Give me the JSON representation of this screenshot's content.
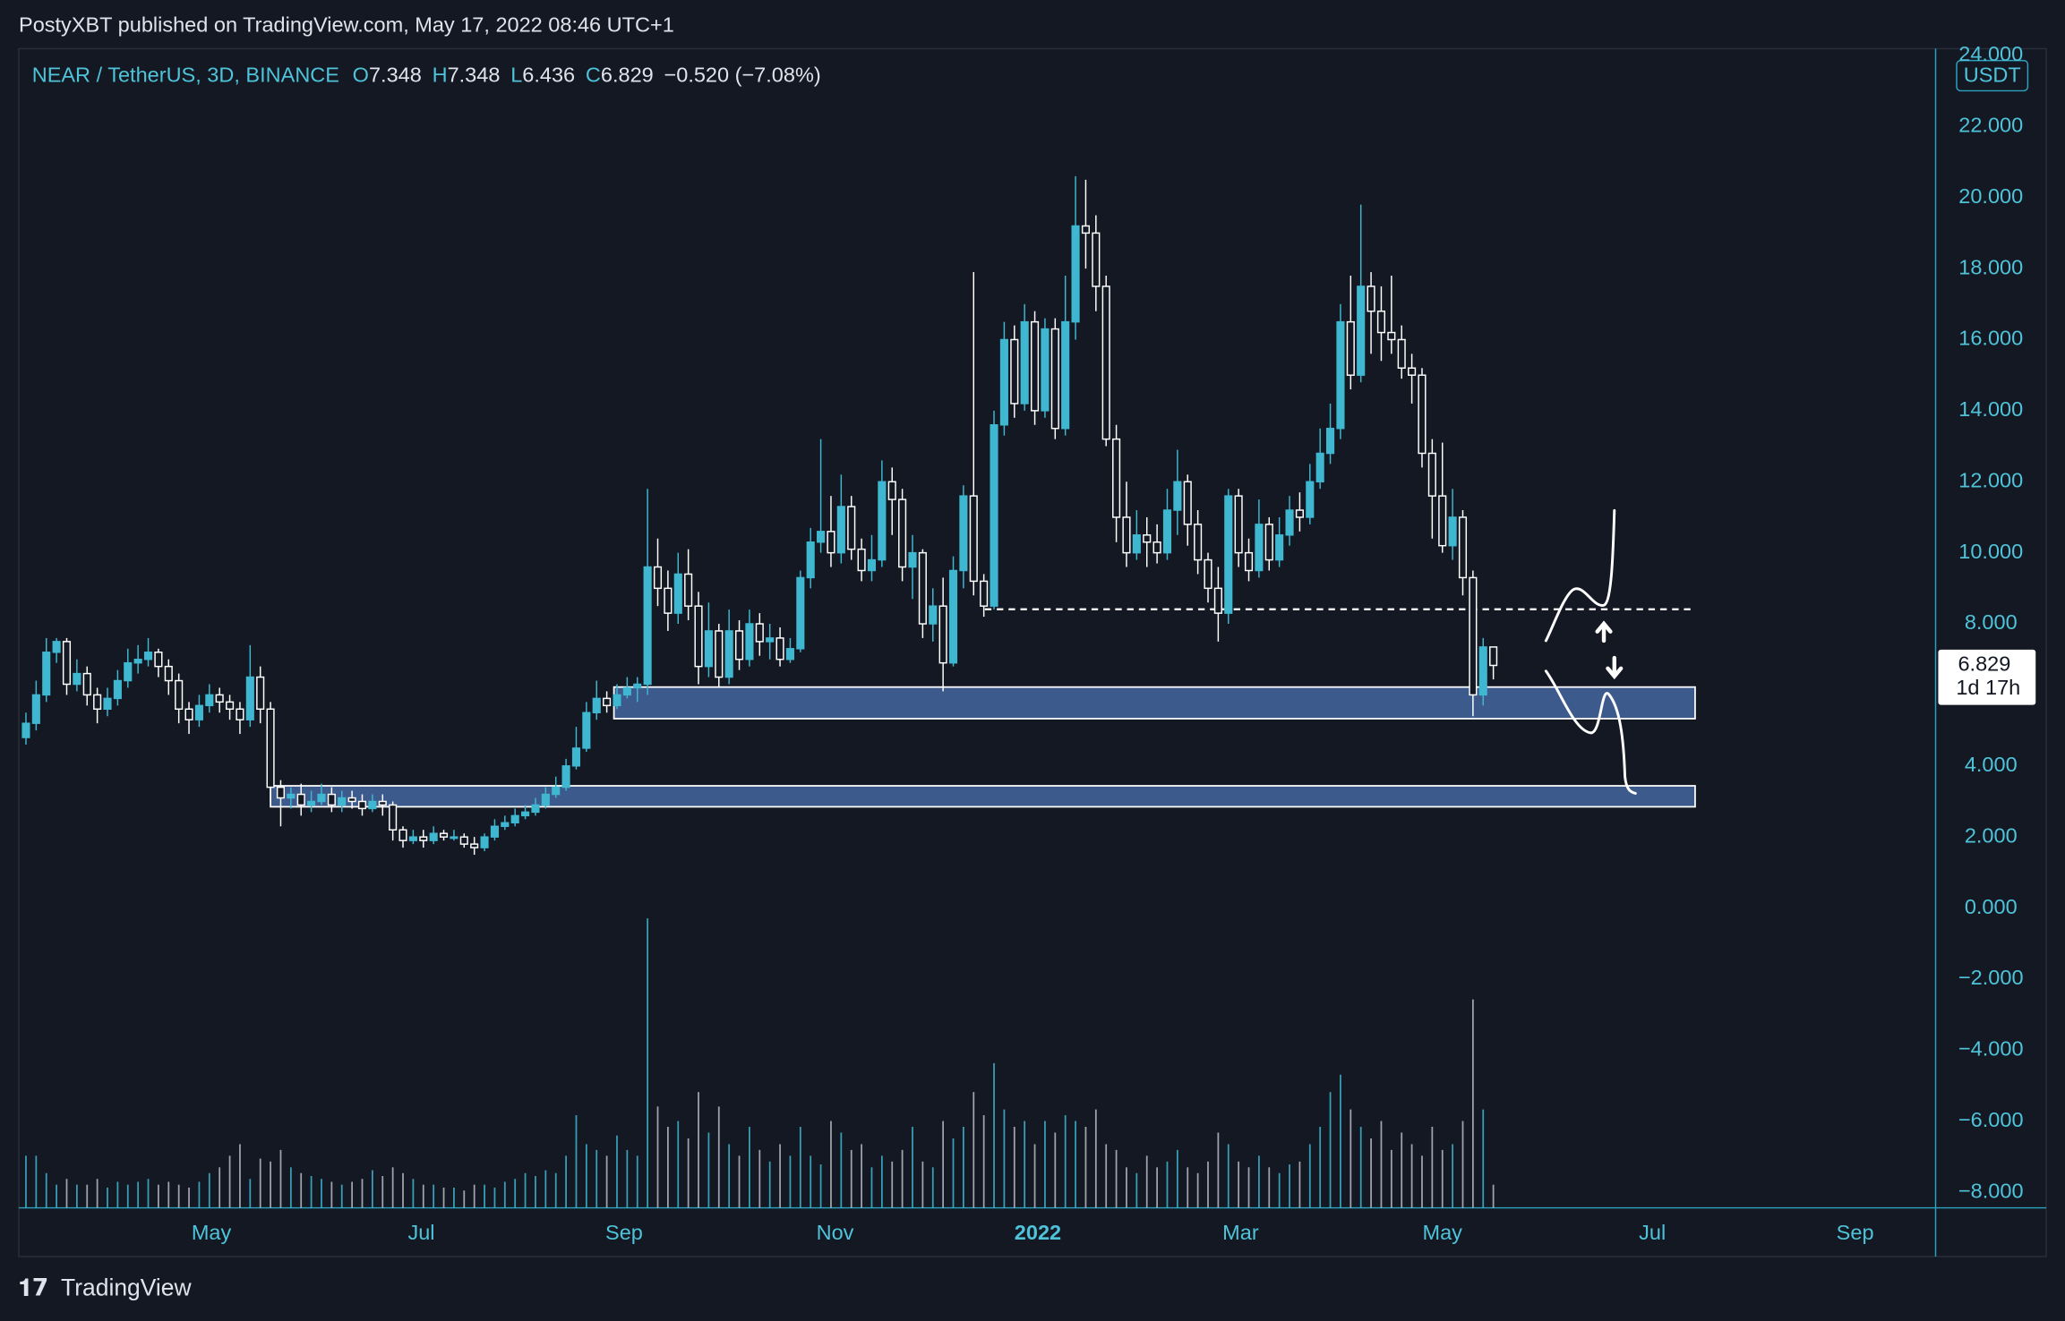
{
  "header": {
    "published": "PostyXBT published on TradingView.com, May 17, 2022 08:46 UTC+1"
  },
  "footer": {
    "logo": "TradingView"
  },
  "chart_data": {
    "type": "candlestick",
    "title": "NEAR / TetherUS, 3D, BINANCE",
    "ohlc_labels": [
      "O",
      "H",
      "L",
      "C"
    ],
    "change_label": "−0.520 (−7.08%)",
    "countdown": "1d 17h",
    "currency": "USDT",
    "up_color": "#3fb7d1",
    "down_color": "#ffffff",
    "zone_color": "#3d5a8c",
    "open": [
      4.8,
      5.2,
      6.0,
      7.2,
      7.5,
      6.3,
      6.6,
      6.0,
      5.6,
      5.9,
      6.4,
      6.9,
      7.0,
      7.2,
      6.8,
      6.4,
      5.6,
      5.3,
      5.7,
      6.0,
      5.8,
      5.6,
      5.3,
      6.5,
      5.6,
      3.4,
      3.1,
      3.2,
      2.9,
      3.0,
      3.2,
      2.9,
      3.1,
      3.0,
      2.8,
      3.0,
      2.9,
      2.2,
      1.9,
      2.0,
      1.9,
      2.1,
      2.0,
      2.0,
      1.8,
      1.7,
      2.0,
      2.3,
      2.4,
      2.6,
      2.7,
      2.9,
      3.2,
      3.4,
      4.0,
      4.5,
      5.5,
      5.9,
      5.7,
      6.0,
      6.2,
      6.3,
      9.6,
      9.0,
      8.3,
      9.4,
      8.5,
      6.8,
      7.8,
      6.5,
      7.8,
      7.0,
      8.0,
      7.5,
      7.6,
      7.0,
      7.3,
      9.3,
      10.3,
      10.6,
      10.0,
      11.3,
      10.1,
      9.5,
      9.8,
      12.0,
      11.5,
      9.6,
      10.0,
      8.0,
      8.5,
      6.9,
      9.5,
      11.6,
      9.2,
      8.5,
      13.6,
      16.0,
      14.2,
      16.5,
      14.0,
      16.3,
      13.5,
      16.5,
      19.2,
      19.0,
      17.5,
      13.2,
      11.0,
      10.0,
      10.5,
      10.3,
      10.0,
      11.2,
      12.0,
      10.8,
      9.8,
      9.0,
      8.3,
      11.6,
      10.0,
      9.5,
      10.8,
      9.8,
      10.5,
      11.2,
      11.0,
      12.0,
      12.8,
      13.5,
      16.5,
      15.0,
      17.5,
      16.8,
      16.2,
      16.0,
      15.2,
      15.0,
      12.8,
      11.6,
      10.2,
      11.0,
      9.3,
      6.0,
      7.348
    ],
    "high": [
      5.5,
      6.4,
      7.6,
      7.6,
      7.6,
      7.0,
      6.8,
      6.2,
      6.2,
      6.7,
      7.3,
      7.4,
      7.6,
      7.3,
      7.0,
      6.6,
      5.8,
      6.0,
      6.3,
      6.2,
      6.0,
      5.8,
      7.4,
      6.8,
      5.8,
      3.6,
      3.4,
      3.5,
      3.3,
      3.5,
      3.4,
      3.3,
      3.3,
      3.2,
      3.2,
      3.2,
      3.0,
      2.3,
      2.2,
      2.2,
      2.3,
      2.2,
      2.2,
      2.1,
      2.0,
      2.1,
      2.5,
      2.6,
      2.8,
      2.9,
      3.1,
      3.4,
      3.7,
      4.2,
      5.1,
      5.8,
      6.4,
      6.1,
      6.3,
      6.5,
      6.5,
      11.8,
      10.4,
      9.5,
      10.0,
      10.1,
      8.9,
      8.6,
      8.0,
      8.4,
      8.1,
      8.4,
      8.3,
      8.0,
      7.9,
      7.6,
      9.5,
      10.7,
      13.2,
      11.6,
      12.2,
      11.6,
      10.4,
      10.5,
      12.6,
      12.4,
      11.8,
      10.5,
      10.1,
      9.0,
      9.3,
      9.9,
      11.9,
      17.9,
      9.4,
      14.0,
      16.5,
      16.4,
      17.0,
      16.8,
      16.6,
      16.6,
      17.8,
      20.6,
      20.5,
      19.5,
      17.8,
      13.6,
      12.0,
      11.2,
      11.0,
      10.8,
      11.8,
      12.9,
      12.2,
      11.2,
      10.0,
      9.6,
      11.8,
      11.8,
      10.4,
      11.5,
      11.0,
      11.0,
      11.6,
      11.7,
      12.5,
      13.5,
      14.2,
      17.0,
      17.8,
      19.8,
      17.9,
      17.5,
      17.8,
      16.4,
      15.6,
      15.2,
      13.2,
      13.1,
      11.8,
      11.2,
      9.5,
      7.6,
      7.348
    ],
    "low": [
      4.6,
      5.0,
      5.8,
      6.9,
      6.0,
      6.1,
      5.7,
      5.2,
      5.4,
      5.7,
      6.2,
      6.6,
      6.8,
      6.5,
      6.0,
      5.2,
      4.9,
      5.1,
      5.5,
      5.5,
      5.3,
      4.9,
      5.1,
      5.2,
      3.0,
      2.3,
      2.8,
      2.6,
      2.7,
      2.9,
      2.7,
      2.7,
      2.8,
      2.6,
      2.7,
      2.6,
      1.9,
      1.7,
      1.8,
      1.7,
      1.8,
      1.9,
      1.9,
      1.7,
      1.5,
      1.6,
      1.9,
      2.2,
      2.3,
      2.5,
      2.6,
      2.8,
      3.1,
      3.3,
      3.9,
      4.4,
      5.3,
      5.5,
      5.6,
      5.9,
      5.8,
      6.0,
      8.5,
      7.8,
      8.0,
      8.1,
      6.3,
      6.5,
      6.2,
      6.3,
      6.7,
      6.8,
      7.1,
      7.0,
      6.8,
      6.9,
      7.2,
      9.0,
      10.0,
      9.6,
      9.7,
      9.8,
      9.2,
      9.2,
      9.6,
      10.5,
      9.2,
      8.7,
      7.6,
      7.5,
      6.1,
      6.8,
      9.0,
      8.8,
      8.2,
      8.4,
      13.3,
      13.8,
      14.0,
      13.6,
      13.8,
      13.2,
      13.3,
      16.0,
      18.0,
      16.8,
      13.0,
      10.3,
      9.6,
      9.8,
      9.6,
      9.7,
      9.8,
      10.5,
      10.2,
      9.4,
      8.6,
      7.5,
      8.0,
      9.6,
      9.2,
      9.3,
      9.5,
      9.6,
      10.2,
      10.6,
      10.8,
      11.8,
      12.5,
      13.2,
      14.6,
      14.8,
      15.6,
      15.4,
      15.6,
      14.9,
      14.2,
      12.4,
      10.4,
      10.0,
      9.8,
      8.8,
      5.4,
      5.7,
      6.436
    ],
    "close": [
      5.2,
      6.0,
      7.2,
      7.5,
      6.3,
      6.6,
      6.0,
      5.6,
      5.9,
      6.4,
      6.9,
      7.0,
      7.2,
      6.8,
      6.4,
      5.6,
      5.3,
      5.7,
      6.0,
      5.8,
      5.6,
      5.3,
      6.5,
      5.6,
      3.4,
      3.1,
      3.2,
      2.9,
      3.0,
      3.2,
      2.9,
      3.1,
      3.0,
      2.8,
      3.0,
      2.9,
      2.2,
      1.9,
      2.0,
      1.9,
      2.1,
      2.0,
      2.0,
      1.8,
      1.7,
      2.0,
      2.3,
      2.4,
      2.6,
      2.7,
      2.9,
      3.2,
      3.4,
      4.0,
      4.5,
      5.5,
      5.9,
      5.7,
      6.0,
      6.2,
      6.3,
      9.6,
      9.0,
      8.3,
      9.4,
      8.5,
      6.8,
      7.8,
      6.5,
      7.8,
      7.0,
      8.0,
      7.5,
      7.6,
      7.0,
      7.3,
      9.3,
      10.3,
      10.6,
      10.0,
      11.3,
      10.1,
      9.5,
      9.8,
      12.0,
      11.5,
      9.6,
      10.0,
      8.0,
      8.5,
      6.9,
      9.5,
      11.6,
      9.2,
      8.5,
      13.6,
      16.0,
      14.2,
      16.5,
      14.0,
      16.3,
      13.5,
      16.5,
      19.2,
      19.0,
      17.5,
      13.2,
      11.0,
      10.0,
      10.5,
      10.3,
      10.0,
      11.2,
      12.0,
      10.8,
      9.8,
      9.0,
      8.3,
      11.6,
      10.0,
      9.5,
      10.8,
      9.8,
      10.5,
      11.2,
      11.0,
      12.0,
      12.8,
      13.5,
      16.5,
      15.0,
      17.5,
      16.8,
      16.2,
      16.0,
      15.2,
      15.0,
      12.8,
      11.6,
      10.2,
      11.0,
      9.3,
      6.0,
      7.348,
      6.829
    ],
    "volume": [
      18,
      18,
      12,
      8,
      10,
      8,
      8,
      10,
      7,
      9,
      8,
      9,
      10,
      8,
      9,
      8,
      7,
      9,
      12,
      14,
      18,
      22,
      10,
      17,
      16,
      20,
      14,
      12,
      11,
      10,
      9,
      8,
      9,
      10,
      13,
      11,
      14,
      12,
      10,
      8,
      8,
      7,
      7,
      6,
      8,
      8,
      7,
      9,
      10,
      12,
      11,
      13,
      12,
      18,
      32,
      22,
      20,
      18,
      25,
      20,
      18,
      100,
      35,
      28,
      30,
      24,
      40,
      26,
      35,
      22,
      18,
      28,
      20,
      16,
      22,
      18,
      28,
      18,
      15,
      30,
      26,
      20,
      22,
      14,
      18,
      16,
      20,
      28,
      16,
      14,
      30,
      24,
      28,
      40,
      32,
      50,
      34,
      28,
      30,
      22,
      30,
      26,
      32,
      30,
      28,
      34,
      22,
      20,
      14,
      12,
      18,
      14,
      16,
      20,
      14,
      12,
      16,
      26,
      22,
      16,
      14,
      18,
      14,
      12,
      15,
      16,
      22,
      28,
      40,
      46,
      34,
      28,
      24,
      30,
      20,
      26,
      22,
      18,
      28,
      20,
      22,
      30,
      72,
      34,
      8
    ],
    "volume_lim": [
      0,
      100
    ],
    "zones": [
      {
        "top": 6.22,
        "bottom": 5.33,
        "from": 57.7,
        "to": 163.8
      },
      {
        "top": 3.44,
        "bottom": 2.85,
        "from": 24.0,
        "to": 163.8
      }
    ],
    "level": {
      "value": 8.41,
      "from": 94.1,
      "to": 163.8
    },
    "xlim": [
      -0.7,
      187.4
    ],
    "xticks": [
      {
        "value": 18.2,
        "label": "May"
      },
      {
        "value": 38.8,
        "label": "Jul"
      },
      {
        "value": 58.7,
        "label": "Sep"
      },
      {
        "value": 79.4,
        "label": "Nov"
      },
      {
        "value": 99.3,
        "label": "2022"
      },
      {
        "value": 119.2,
        "label": "Mar"
      },
      {
        "value": 139.0,
        "label": "May"
      },
      {
        "value": 159.6,
        "label": "Jul"
      },
      {
        "value": 179.5,
        "label": "Sep"
      }
    ],
    "ylim": [
      -8.44,
      24.19
    ],
    "yticks": [
      {
        "value": 24,
        "label": "24.000"
      },
      {
        "value": 22,
        "label": "22.000"
      },
      {
        "value": 20,
        "label": "20.000"
      },
      {
        "value": 18,
        "label": "18.000"
      },
      {
        "value": 16,
        "label": "16.000"
      },
      {
        "value": 14,
        "label": "14.000"
      },
      {
        "value": 12,
        "label": "12.000"
      },
      {
        "value": 10,
        "label": "10.000"
      },
      {
        "value": 8,
        "label": "8.000"
      },
      {
        "value": 6,
        "label": "6.000"
      },
      {
        "value": 4,
        "label": "4.000"
      },
      {
        "value": 2,
        "label": "2.000"
      },
      {
        "value": 0,
        "label": "0.000"
      },
      {
        "value": -2,
        "label": "−2.000"
      },
      {
        "value": -4,
        "label": "−4.000"
      },
      {
        "value": -6,
        "label": "−6.000"
      },
      {
        "value": -8,
        "label": "−8.000"
      }
    ]
  }
}
